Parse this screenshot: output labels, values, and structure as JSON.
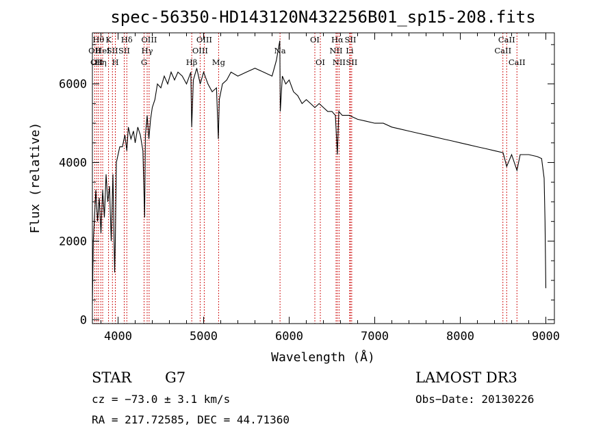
{
  "chart_data": {
    "type": "line",
    "title": "spec-56350-HD143120N432256B01_sp15-208.fits",
    "xlabel": "Wavelength (Å)",
    "ylabel": "Flux (relative)",
    "xlim": [
      3700,
      9100
    ],
    "ylim": [
      -100,
      7300
    ],
    "xticks": [
      4000,
      5000,
      6000,
      7000,
      8000,
      9000
    ],
    "yticks": [
      0,
      2000,
      4000,
      6000
    ],
    "tick_labels_x": [
      "4000",
      "5000",
      "6000",
      "7000",
      "8000",
      "9000"
    ],
    "tick_labels_y": [
      "0",
      "2000",
      "4000",
      "6000"
    ],
    "series": [
      {
        "name": "flux",
        "color": "#000000",
        "x": [
          3700,
          3710,
          3725,
          3740,
          3760,
          3780,
          3800,
          3820,
          3840,
          3860,
          3880,
          3900,
          3920,
          3940,
          3960,
          3968,
          3980,
          4000,
          4020,
          4050,
          4080,
          4102,
          4120,
          4150,
          4180,
          4200,
          4230,
          4260,
          4290,
          4310,
          4320,
          4340,
          4360,
          4380,
          4400,
          4430,
          4460,
          4500,
          4540,
          4580,
          4620,
          4660,
          4700,
          4750,
          4800,
          4850,
          4861,
          4880,
          4920,
          4960,
          5000,
          5050,
          5100,
          5150,
          5172,
          5183,
          5220,
          5270,
          5320,
          5400,
          5500,
          5600,
          5700,
          5800,
          5850,
          5890,
          5896,
          5920,
          5960,
          6000,
          6050,
          6100,
          6150,
          6200,
          6250,
          6300,
          6350,
          6400,
          6450,
          6500,
          6540,
          6563,
          6580,
          6620,
          6700,
          6800,
          6900,
          7000,
          7100,
          7200,
          7300,
          7400,
          7500,
          7600,
          7700,
          7800,
          7900,
          8000,
          8100,
          8200,
          8300,
          8400,
          8500,
          8542,
          8600,
          8662,
          8700,
          8800,
          8900,
          8950,
          8980,
          8990,
          9000
        ],
        "values": [
          400,
          2000,
          2600,
          3300,
          2500,
          3100,
          2200,
          3300,
          2600,
          3700,
          3000,
          3400,
          2000,
          3700,
          1200,
          2000,
          4000,
          4200,
          4400,
          4400,
          4700,
          4300,
          4900,
          4600,
          4800,
          4500,
          4900,
          4700,
          4300,
          2600,
          4700,
          5200,
          4600,
          5100,
          5400,
          5600,
          6000,
          5900,
          6200,
          6000,
          6300,
          6100,
          6300,
          6200,
          6000,
          6300,
          4900,
          6100,
          6400,
          6000,
          6300,
          6000,
          5800,
          5900,
          4600,
          5600,
          6000,
          6100,
          6300,
          6200,
          6300,
          6400,
          6300,
          6200,
          6600,
          7100,
          5300,
          6200,
          6000,
          6100,
          5800,
          5700,
          5500,
          5600,
          5500,
          5400,
          5500,
          5400,
          5300,
          5300,
          5200,
          4200,
          5300,
          5200,
          5200,
          5100,
          5050,
          5000,
          5000,
          4900,
          4850,
          4800,
          4750,
          4700,
          4650,
          4600,
          4550,
          4500,
          4450,
          4400,
          4350,
          4300,
          4250,
          3900,
          4200,
          3800,
          4200,
          4200,
          4150,
          4100,
          3600,
          2500,
          800
        ]
      }
    ],
    "lines": [
      {
        "wavelength": 3727,
        "label": "OII",
        "row": 2
      },
      {
        "wavelength": 3750,
        "label": "OII",
        "row": 3
      },
      {
        "wavelength": 3771,
        "label": "Hθ",
        "row": 1
      },
      {
        "wavelength": 3798,
        "label": "Hη",
        "row": 3
      },
      {
        "wavelength": 3820,
        "label": "HeI",
        "row": 2
      },
      {
        "wavelength": 3889,
        "label": "K",
        "row": 1
      },
      {
        "wavelength": 3934,
        "label": "SII",
        "row": 2
      },
      {
        "wavelength": 3968,
        "label": "H",
        "row": 3
      },
      {
        "wavelength": 4102,
        "label": "Hδ",
        "row": 1
      },
      {
        "wavelength": 4072,
        "label": "SII",
        "row": 2
      },
      {
        "wavelength": 4304,
        "label": "G",
        "row": 3
      },
      {
        "wavelength": 4340,
        "label": "Hγ",
        "row": 2
      },
      {
        "wavelength": 4363,
        "label": "OIII",
        "row": 1
      },
      {
        "wavelength": 4861,
        "label": "Hβ",
        "row": 3
      },
      {
        "wavelength": 4959,
        "label": "OIII",
        "row": 2
      },
      {
        "wavelength": 5007,
        "label": "OIII",
        "row": 1
      },
      {
        "wavelength": 5175,
        "label": "Mg",
        "row": 3
      },
      {
        "wavelength": 5893,
        "label": "Na",
        "row": 2
      },
      {
        "wavelength": 6300,
        "label": "OI",
        "row": 1
      },
      {
        "wavelength": 6364,
        "label": "OI",
        "row": 3
      },
      {
        "wavelength": 6548,
        "label": "NII",
        "row": 2
      },
      {
        "wavelength": 6563,
        "label": "Hα",
        "row": 1
      },
      {
        "wavelength": 6583,
        "label": "NII",
        "row": 3
      },
      {
        "wavelength": 6707,
        "label": "Li",
        "row": 2
      },
      {
        "wavelength": 6716,
        "label": "SII",
        "row": 1
      },
      {
        "wavelength": 6731,
        "label": "SII",
        "row": 3
      },
      {
        "wavelength": 8498,
        "label": "CaII",
        "row": 2
      },
      {
        "wavelength": 8542,
        "label": "CaII",
        "row": 1
      },
      {
        "wavelength": 8662,
        "label": "CaII",
        "row": 3
      }
    ],
    "colors": {
      "spectrum": "#000000",
      "line_markers": "#cc0000",
      "axes": "#000000"
    }
  },
  "info": {
    "object_class": "STAR",
    "subclass": "G7",
    "survey": "LAMOST DR3",
    "redshift": "cz = −73.0 ± 3.1 km/s",
    "obs_date": "Obs−Date: 20130226",
    "coords": "RA = 217.72585, DEC =  44.71360"
  }
}
